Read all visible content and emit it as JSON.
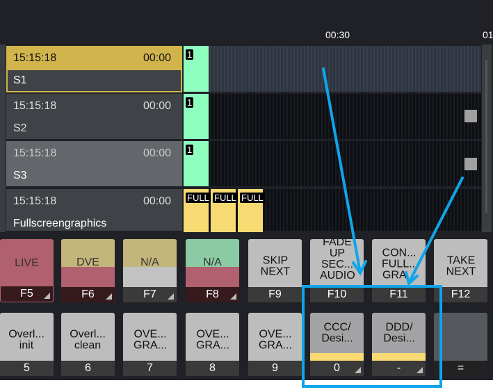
{
  "ruler": {
    "marks": [
      "00:30",
      "01"
    ]
  },
  "rows": [
    {
      "time": "15:15:18",
      "duration": "00:00",
      "name": "S1",
      "clip": "1"
    },
    {
      "time": "15:15:18",
      "duration": "00:00",
      "name": "S2",
      "clip": "1"
    },
    {
      "time": "15:15:18",
      "duration": "00:00",
      "name": "S3",
      "clip": "1"
    },
    {
      "time": "15:15:18",
      "duration": "00:00",
      "name": "Fullscreengraphics",
      "clips": [
        "FULL",
        "FULL",
        "FULL"
      ]
    }
  ],
  "buttons_row1": [
    {
      "label": "LIVE",
      "key": "F5"
    },
    {
      "label": "DVE",
      "key": "F6"
    },
    {
      "label": "N/A",
      "key": "F7"
    },
    {
      "label": "N/A",
      "key": "F8"
    },
    {
      "label": "SKIP NEXT",
      "key": "F9"
    },
    {
      "label": "FADE UP SEC... AUDIO",
      "key": "F10"
    },
    {
      "label": "CON... FULL... GRA...",
      "key": "F11"
    },
    {
      "label": "TAKE NEXT",
      "key": "F12"
    }
  ],
  "buttons_row2": [
    {
      "label": "Overl... init",
      "key": "5"
    },
    {
      "label": "Overl... clean",
      "key": "6"
    },
    {
      "label": "OVE... GRA...",
      "key": "7"
    },
    {
      "label": "OVE... GRA...",
      "key": "8"
    },
    {
      "label": "OVE... GRA...",
      "key": "9"
    },
    {
      "label": "CCC/ Desi...",
      "key": "0"
    },
    {
      "label": "DDD/ Desi...",
      "key": "-"
    },
    {
      "label": "",
      "key": "="
    }
  ],
  "colors": {
    "selected": "#d1b44b",
    "live": "#b0606e",
    "annotation": "#0ea5e9",
    "clip_green": "#8fffbf",
    "clip_yellow": "#f7da72"
  }
}
